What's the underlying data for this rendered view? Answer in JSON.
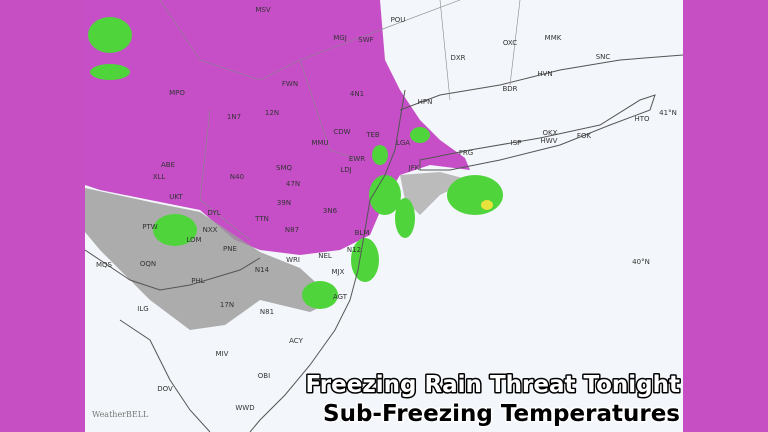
{
  "map": {
    "labels": [
      "MSV",
      "MGJ",
      "SWF",
      "POU",
      "DXR",
      "OXC",
      "MMK",
      "SNC",
      "HVN",
      "BDR",
      "HPN",
      "MPO",
      "1N7",
      "12N",
      "FWN",
      "4N1",
      "CDW",
      "MMU",
      "TEB",
      "LGA",
      "EWR",
      "JFK",
      "LDJ",
      "ISP",
      "OKX",
      "HWV",
      "FOK",
      "HTO",
      "FRG",
      "ABE",
      "XLL",
      "N40",
      "SMQ",
      "47N",
      "UKT",
      "DYL",
      "39N",
      "3N6",
      "TTN",
      "N87",
      "PTW",
      "LOM",
      "NXX",
      "PNE",
      "BLM",
      "NEL",
      "MJX",
      "WRI",
      "N14",
      "N12",
      "MQS",
      "OQN",
      "PHL",
      "ILG",
      "AGT",
      "17N",
      "N81",
      "ACY",
      "MIV",
      "OBI",
      "DOV",
      "WWD"
    ],
    "latitude_labels": [
      "41°N",
      "40°N"
    ]
  },
  "caption": {
    "line1": "Freezing Rain Threat Tonight",
    "line2": "Sub-Freezing Temperatures"
  },
  "logo": "WeatherBELL"
}
